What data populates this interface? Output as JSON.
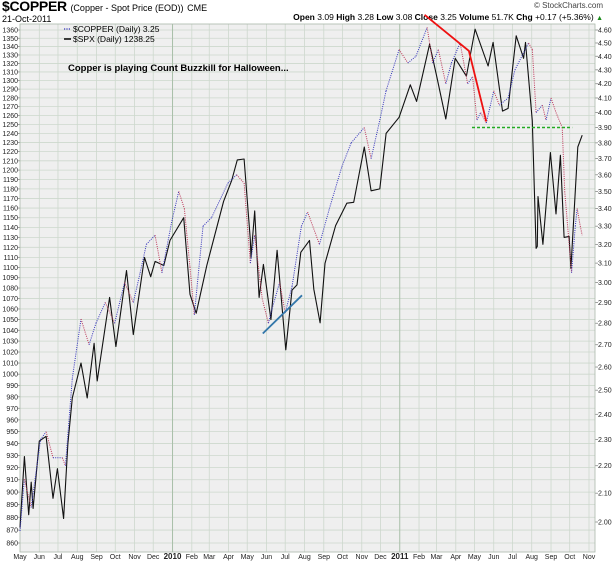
{
  "header": {
    "symbol": "$COPPER",
    "name": "(Copper - Spot Price (EOD))",
    "exchange": "CME",
    "date": "21-Oct-2011",
    "copyright": "© StockCharts.com",
    "quote": {
      "open_label": "Open",
      "open": "3.09",
      "high_label": "High",
      "high": "3.28",
      "low_label": "Low",
      "low": "3.08",
      "close_label": "Close",
      "close": "3.25",
      "volume_label": "Volume",
      "volume": "51.7K",
      "chg_label": "Chg",
      "chg": "+0.17 (+5.36%)",
      "chg_arrow": "▲"
    }
  },
  "legend": {
    "copper": "$COPPER (Daily) 3.25",
    "spx": "$SPX (Daily) 1238.25"
  },
  "annotation": "Copper is playing Count Buzzkill for Halloween...",
  "colors": {
    "plot_bg": "#efefef",
    "grid": "#cdd8cd",
    "year_grid": "#a9bfa9",
    "spx": "#111111",
    "copper_up": "#3333bb",
    "copper_down": "#bb3355",
    "red_line": "#ee1111",
    "green_line": "#22aa22",
    "blue_line": "#3377aa"
  },
  "chart_data": {
    "type": "line",
    "title": "$COPPER (Copper - Spot Price (EOD))",
    "x_range": [
      "2009-05-01",
      "2011-11-01"
    ],
    "x_tick_labels": [
      {
        "date": "2009-05-01",
        "label": "May"
      },
      {
        "date": "2009-06-01",
        "label": "Jun"
      },
      {
        "date": "2009-07-01",
        "label": "Jul"
      },
      {
        "date": "2009-08-01",
        "label": "Aug"
      },
      {
        "date": "2009-09-01",
        "label": "Sep"
      },
      {
        "date": "2009-10-01",
        "label": "Oct"
      },
      {
        "date": "2009-11-01",
        "label": "Nov"
      },
      {
        "date": "2009-12-01",
        "label": "Dec"
      },
      {
        "date": "2010-01-01",
        "label": "2010",
        "bold": true
      },
      {
        "date": "2010-02-01",
        "label": "Feb"
      },
      {
        "date": "2010-03-01",
        "label": "Mar"
      },
      {
        "date": "2010-04-01",
        "label": "Apr"
      },
      {
        "date": "2010-05-01",
        "label": "May"
      },
      {
        "date": "2010-06-01",
        "label": "Jun"
      },
      {
        "date": "2010-07-01",
        "label": "Jul"
      },
      {
        "date": "2010-08-01",
        "label": "Aug"
      },
      {
        "date": "2010-09-01",
        "label": "Sep"
      },
      {
        "date": "2010-10-01",
        "label": "Oct"
      },
      {
        "date": "2010-11-01",
        "label": "Nov"
      },
      {
        "date": "2010-12-01",
        "label": "Dec"
      },
      {
        "date": "2011-01-01",
        "label": "2011",
        "bold": true
      },
      {
        "date": "2011-02-01",
        "label": "Feb"
      },
      {
        "date": "2011-03-01",
        "label": "Mar"
      },
      {
        "date": "2011-04-01",
        "label": "Apr"
      },
      {
        "date": "2011-05-01",
        "label": "May"
      },
      {
        "date": "2011-06-01",
        "label": "Jun"
      },
      {
        "date": "2011-07-01",
        "label": "Jul"
      },
      {
        "date": "2011-08-01",
        "label": "Aug"
      },
      {
        "date": "2011-09-01",
        "label": "Sep"
      },
      {
        "date": "2011-10-01",
        "label": "Oct"
      },
      {
        "date": "2011-11-01",
        "label": "Nov"
      }
    ],
    "y_left": {
      "label": "$SPX",
      "scale": "log",
      "range": [
        860,
        1360
      ],
      "tick_step": 10
    },
    "y_right": {
      "label": "$COPPER",
      "scale": "log",
      "range": [
        2.0,
        4.6
      ],
      "ticks": [
        "2.00",
        "2.10",
        "2.20",
        "2.30",
        "2.40",
        "2.50",
        "2.60",
        "2.70",
        "2.80",
        "2.90",
        "3.00",
        "3.10",
        "3.20",
        "3.30",
        "3.40",
        "3.50",
        "3.60",
        "3.70",
        "3.80",
        "3.90",
        "4.00",
        "4.10",
        "4.20",
        "4.30",
        "4.40",
        "4.50",
        "4.60"
      ]
    },
    "grid": true,
    "legend_position": "top-left",
    "series": [
      {
        "name": "$SPX (Daily)",
        "axis": "left",
        "style": "solid-black",
        "points": [
          [
            "2009-05-01",
            872
          ],
          [
            "2009-05-08",
            929
          ],
          [
            "2009-05-15",
            882
          ],
          [
            "2009-05-19",
            908
          ],
          [
            "2009-05-22",
            887
          ],
          [
            "2009-06-01",
            942
          ],
          [
            "2009-06-12",
            946
          ],
          [
            "2009-06-23",
            895
          ],
          [
            "2009-06-30",
            919
          ],
          [
            "2009-07-10",
            879
          ],
          [
            "2009-07-17",
            940
          ],
          [
            "2009-07-24",
            979
          ],
          [
            "2009-08-07",
            1010
          ],
          [
            "2009-08-17",
            979
          ],
          [
            "2009-08-28",
            1028
          ],
          [
            "2009-09-02",
            994
          ],
          [
            "2009-09-22",
            1071
          ],
          [
            "2009-10-02",
            1025
          ],
          [
            "2009-10-19",
            1097
          ],
          [
            "2009-10-30",
            1036
          ],
          [
            "2009-11-17",
            1110
          ],
          [
            "2009-11-27",
            1091
          ],
          [
            "2009-12-04",
            1106
          ],
          [
            "2009-12-18",
            1102
          ],
          [
            "2009-12-28",
            1127
          ],
          [
            "2010-01-19",
            1150
          ],
          [
            "2010-01-29",
            1074
          ],
          [
            "2010-02-08",
            1056
          ],
          [
            "2010-02-25",
            1102
          ],
          [
            "2010-03-24",
            1167
          ],
          [
            "2010-04-06",
            1189
          ],
          [
            "2010-04-15",
            1211
          ],
          [
            "2010-04-26",
            1212
          ],
          [
            "2010-05-06",
            1128
          ],
          [
            "2010-05-07",
            1110
          ],
          [
            "2010-05-13",
            1157
          ],
          [
            "2010-05-20",
            1071
          ],
          [
            "2010-05-27",
            1103
          ],
          [
            "2010-06-08",
            1050
          ],
          [
            "2010-06-18",
            1117
          ],
          [
            "2010-07-02",
            1022
          ],
          [
            "2010-07-12",
            1078
          ],
          [
            "2010-07-20",
            1083
          ],
          [
            "2010-07-26",
            1115
          ],
          [
            "2010-08-09",
            1127
          ],
          [
            "2010-08-16",
            1079
          ],
          [
            "2010-08-26",
            1047
          ],
          [
            "2010-09-03",
            1104
          ],
          [
            "2010-09-20",
            1142
          ],
          [
            "2010-10-08",
            1165
          ],
          [
            "2010-10-19",
            1166
          ],
          [
            "2010-11-05",
            1225
          ],
          [
            "2010-11-16",
            1178
          ],
          [
            "2010-11-30",
            1180
          ],
          [
            "2010-12-10",
            1240
          ],
          [
            "2010-12-31",
            1258
          ],
          [
            "2011-01-18",
            1295
          ],
          [
            "2011-01-28",
            1276
          ],
          [
            "2011-02-18",
            1343
          ],
          [
            "2011-03-01",
            1306
          ],
          [
            "2011-03-16",
            1256
          ],
          [
            "2011-03-31",
            1326
          ],
          [
            "2011-04-18",
            1305
          ],
          [
            "2011-05-02",
            1361
          ],
          [
            "2011-05-23",
            1317
          ],
          [
            "2011-05-31",
            1345
          ],
          [
            "2011-06-15",
            1265
          ],
          [
            "2011-06-24",
            1268
          ],
          [
            "2011-07-07",
            1353
          ],
          [
            "2011-07-19",
            1326
          ],
          [
            "2011-07-22",
            1345
          ],
          [
            "2011-08-02",
            1254
          ],
          [
            "2011-08-08",
            1119
          ],
          [
            "2011-08-10",
            1121
          ],
          [
            "2011-08-11",
            1172
          ],
          [
            "2011-08-19",
            1123
          ],
          [
            "2011-08-31",
            1219
          ],
          [
            "2011-09-09",
            1154
          ],
          [
            "2011-09-16",
            1216
          ],
          [
            "2011-09-22",
            1130
          ],
          [
            "2011-09-30",
            1131
          ],
          [
            "2011-10-03",
            1099
          ],
          [
            "2011-10-14",
            1225
          ],
          [
            "2011-10-21",
            1238
          ]
        ]
      },
      {
        "name": "$COPPER (Daily)",
        "axis": "right",
        "style": "dotted-updown",
        "points": [
          [
            "2009-05-01",
            1.97
          ],
          [
            "2009-05-08",
            2.15
          ],
          [
            "2009-05-19",
            2.05
          ],
          [
            "2009-06-03",
            2.3
          ],
          [
            "2009-06-12",
            2.33
          ],
          [
            "2009-06-23",
            2.23
          ],
          [
            "2009-07-08",
            2.23
          ],
          [
            "2009-07-13",
            2.2
          ],
          [
            "2009-07-24",
            2.55
          ],
          [
            "2009-08-07",
            2.82
          ],
          [
            "2009-08-20",
            2.7
          ],
          [
            "2009-08-31",
            2.8
          ],
          [
            "2009-09-15",
            2.9
          ],
          [
            "2009-09-30",
            2.8
          ],
          [
            "2009-10-16",
            3.0
          ],
          [
            "2009-10-30",
            2.9
          ],
          [
            "2009-11-10",
            3.05
          ],
          [
            "2009-11-20",
            3.2
          ],
          [
            "2009-12-04",
            3.25
          ],
          [
            "2009-12-15",
            3.05
          ],
          [
            "2009-12-31",
            3.33
          ],
          [
            "2010-01-11",
            3.5
          ],
          [
            "2010-01-20",
            3.4
          ],
          [
            "2010-01-29",
            3.08
          ],
          [
            "2010-02-05",
            2.84
          ],
          [
            "2010-02-19",
            3.3
          ],
          [
            "2010-03-05",
            3.35
          ],
          [
            "2010-03-31",
            3.55
          ],
          [
            "2010-04-14",
            3.6
          ],
          [
            "2010-04-26",
            3.55
          ],
          [
            "2010-05-06",
            3.1
          ],
          [
            "2010-05-13",
            3.25
          ],
          [
            "2010-05-25",
            2.92
          ],
          [
            "2010-06-04",
            2.8
          ],
          [
            "2010-06-10",
            2.87
          ],
          [
            "2010-06-22",
            3.0
          ],
          [
            "2010-07-01",
            2.85
          ],
          [
            "2010-07-12",
            2.98
          ],
          [
            "2010-07-27",
            3.3
          ],
          [
            "2010-08-06",
            3.38
          ],
          [
            "2010-08-25",
            3.2
          ],
          [
            "2010-09-10",
            3.4
          ],
          [
            "2010-09-30",
            3.65
          ],
          [
            "2010-10-15",
            3.8
          ],
          [
            "2010-11-05",
            3.9
          ],
          [
            "2010-11-16",
            3.7
          ],
          [
            "2010-11-30",
            3.95
          ],
          [
            "2010-12-10",
            4.15
          ],
          [
            "2010-12-31",
            4.45
          ],
          [
            "2011-01-14",
            4.35
          ],
          [
            "2011-01-27",
            4.4
          ],
          [
            "2011-02-14",
            4.62
          ],
          [
            "2011-02-23",
            4.35
          ],
          [
            "2011-03-04",
            4.45
          ],
          [
            "2011-03-16",
            4.2
          ],
          [
            "2011-03-25",
            4.35
          ],
          [
            "2011-04-08",
            4.5
          ],
          [
            "2011-04-20",
            4.2
          ],
          [
            "2011-04-28",
            4.25
          ],
          [
            "2011-05-05",
            3.95
          ],
          [
            "2011-05-11",
            4.0
          ],
          [
            "2011-05-20",
            3.93
          ],
          [
            "2011-06-01",
            4.15
          ],
          [
            "2011-06-10",
            4.05
          ],
          [
            "2011-06-24",
            4.1
          ],
          [
            "2011-07-05",
            4.3
          ],
          [
            "2011-07-27",
            4.5
          ],
          [
            "2011-08-02",
            4.45
          ],
          [
            "2011-08-08",
            4.0
          ],
          [
            "2011-08-18",
            4.05
          ],
          [
            "2011-08-24",
            3.95
          ],
          [
            "2011-09-01",
            4.1
          ],
          [
            "2011-09-09",
            4.0
          ],
          [
            "2011-09-19",
            3.9
          ],
          [
            "2011-09-23",
            3.5
          ],
          [
            "2011-10-04",
            3.05
          ],
          [
            "2011-10-10",
            3.3
          ],
          [
            "2011-10-13",
            3.4
          ],
          [
            "2011-10-18",
            3.3
          ],
          [
            "2011-10-21",
            3.25
          ]
        ]
      }
    ],
    "drawn_lines": [
      {
        "name": "red-trendline",
        "color": "red",
        "axis": "right",
        "points": [
          [
            "2011-02-10",
            4.72
          ],
          [
            "2011-04-22",
            4.44
          ],
          [
            "2011-05-20",
            3.94
          ]
        ]
      },
      {
        "name": "green-support-line",
        "color": "green",
        "style": "dashed",
        "axis": "right",
        "points": [
          [
            "2011-04-27",
            3.9
          ],
          [
            "2011-10-05",
            3.9
          ]
        ]
      },
      {
        "name": "blue-trendline",
        "color": "blue",
        "axis": "left",
        "points": [
          [
            "2010-05-26",
            1037
          ],
          [
            "2010-07-28",
            1073
          ]
        ]
      }
    ]
  }
}
